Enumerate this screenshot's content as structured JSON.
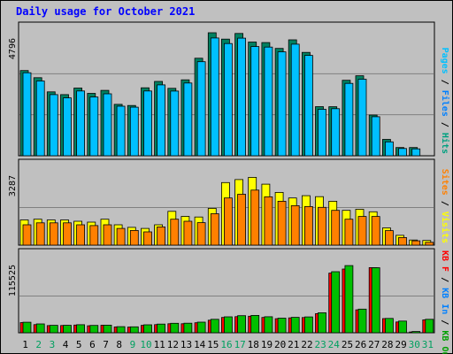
{
  "chart_data": {
    "title": "Daily usage for October 2021",
    "type": "bar",
    "categories": [
      "1",
      "2",
      "3",
      "4",
      "5",
      "6",
      "7",
      "8",
      "9",
      "10",
      "11",
      "12",
      "13",
      "14",
      "15",
      "16",
      "17",
      "18",
      "19",
      "20",
      "21",
      "22",
      "23",
      "24",
      "25",
      "26",
      "27",
      "28",
      "29",
      "30",
      "31"
    ],
    "weekend_days": [
      "2",
      "3",
      "9",
      "10",
      "16",
      "17",
      "23",
      "24",
      "30",
      "31"
    ],
    "panels": [
      {
        "name": "hits-files-pages",
        "ymax_label": "4796",
        "ymax": 4796,
        "legend": [
          {
            "text": "Pages",
            "color": "#00c0ff"
          },
          {
            "text": "/",
            "color": "#000000"
          },
          {
            "text": "Files",
            "color": "#0080ff"
          },
          {
            "text": "/",
            "color": "#000000"
          },
          {
            "text": "Hits",
            "color": "#00a080"
          }
        ],
        "series": [
          {
            "key": "hits",
            "color": "#008060",
            "values": [
              3321,
              3044,
              2491,
              2385,
              2639,
              2431,
              2549,
              2003,
              1959,
              2650,
              2897,
              2629,
              2959,
              3804,
              4796,
              4547,
              4767,
              4432,
              4414,
              4184,
              4521,
              4029,
              1914,
              1913,
              2944,
              3118,
              1587,
              640,
              322,
              321,
              0
            ]
          },
          {
            "key": "files",
            "color": "#00c0ff",
            "values": [
              3235,
              2916,
              2384,
              2255,
              2526,
              2291,
              2416,
              1931,
              1894,
              2527,
              2763,
              2522,
              2835,
              3669,
              4591,
              4376,
              4585,
              4257,
              4236,
              4051,
              4352,
              3914,
              1813,
              1836,
              2824,
              2985,
              1520,
              541,
              283,
              269,
              0
            ]
          }
        ]
      },
      {
        "name": "visits-sites",
        "ymax_label": "3287",
        "ymax": 3287,
        "legend": [
          {
            "text": "Sites",
            "color": "#ff8000"
          },
          {
            "text": "/",
            "color": "#000000"
          },
          {
            "text": "Visits",
            "color": "#ffff00"
          }
        ],
        "series": [
          {
            "key": "visits",
            "color": "#ffff00",
            "values": [
              1103,
              1133,
              1103,
              1103,
              1046,
              1004,
              1133,
              889,
              776,
              731,
              889,
              1476,
              1256,
              1231,
              1608,
              2734,
              2867,
              2963,
              2665,
              2304,
              2061,
              2162,
              2118,
              1917,
              1521,
              1566,
              1456,
              754,
              428,
              226,
              205
            ]
          },
          {
            "key": "sites",
            "color": "#ff8000",
            "values": [
              889,
              974,
              974,
              974,
              889,
              856,
              889,
              731,
              643,
              580,
              796,
              1133,
              1046,
              981,
              1373,
              2062,
              2223,
              2406,
              2113,
              1917,
              1724,
              1686,
              1651,
              1521,
              1133,
              1254,
              1254,
              636,
              333,
              190,
              125
            ]
          }
        ]
      },
      {
        "name": "kbin-kbout",
        "ymax_label": "115525",
        "ymax": 115525,
        "legend": [
          {
            "text": "KB F",
            "color": "#ff0000"
          },
          {
            "text": "/",
            "color": "#000000"
          },
          {
            "text": "KB In",
            "color": "#0080ff"
          },
          {
            "text": "/",
            "color": "#000000"
          },
          {
            "text": "KB Out",
            "color": "#00a000"
          }
        ],
        "series": [
          {
            "key": "kbin",
            "color": "#ff0000",
            "values": [
              15970,
              12750,
              11290,
              11390,
              12050,
              10940,
              11780,
              9180,
              8850,
              11760,
              12800,
              14190,
              14130,
              15700,
              19780,
              24030,
              25390,
              26060,
              24140,
              22130,
              23390,
              23990,
              30040,
              93810,
              100150,
              35980,
              102480,
              22220,
              16970,
              1280,
              20340
            ]
          },
          {
            "key": "kbout",
            "color": "#00c000",
            "values": [
              16630,
              13860,
              11750,
              11750,
              12700,
              11520,
              12000,
              9610,
              9320,
              12530,
              13580,
              14900,
              15070,
              16660,
              21190,
              24990,
              26890,
              27250,
              25190,
              22930,
              24280,
              24880,
              31410,
              96090,
              105580,
              37160,
              102360,
              22610,
              18360,
              1930,
              21210
            ]
          }
        ]
      }
    ]
  }
}
